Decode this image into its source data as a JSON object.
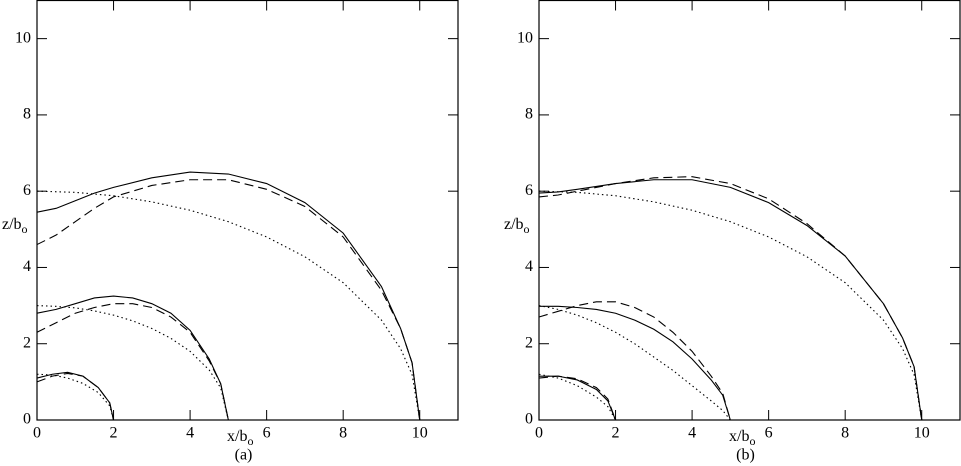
{
  "chart_data": [
    {
      "type": "line",
      "xlabel": "x/b",
      "xlabel_sub": "o",
      "ylabel": "z/b",
      "ylabel_sub": "o",
      "caption": "(a)",
      "xlim": [
        0,
        11
      ],
      "ylim": [
        0,
        11
      ],
      "xticks": [
        0,
        2,
        4,
        6,
        8,
        10
      ],
      "yticks": [
        0,
        2,
        4,
        6,
        8,
        10
      ],
      "series": [
        {
          "style": "solid",
          "color": "#000000",
          "x": [
            0,
            0.5,
            1,
            1.5,
            2,
            3,
            4,
            5,
            6,
            7,
            8,
            9,
            9.5,
            9.8,
            10
          ],
          "values": [
            5.45,
            5.55,
            5.75,
            5.95,
            6.1,
            6.35,
            6.5,
            6.45,
            6.2,
            5.7,
            4.9,
            3.5,
            2.4,
            1.5,
            0
          ]
        },
        {
          "style": "dashed",
          "color": "#000000",
          "x": [
            0,
            0.5,
            1,
            1.5,
            2,
            3,
            4,
            5,
            6,
            7,
            8,
            9,
            9.5,
            9.8,
            10
          ],
          "values": [
            4.6,
            4.85,
            5.2,
            5.55,
            5.85,
            6.15,
            6.3,
            6.3,
            6.05,
            5.6,
            4.8,
            3.4,
            2.4,
            1.5,
            0
          ]
        },
        {
          "style": "dotted",
          "color": "#000000",
          "x": [
            0,
            1,
            2,
            3,
            4,
            5,
            6,
            7,
            8,
            9,
            9.5,
            9.8,
            10
          ],
          "values": [
            6,
            5.97,
            5.88,
            5.72,
            5.5,
            5.2,
            4.8,
            4.28,
            3.6,
            2.62,
            1.87,
            1.19,
            0
          ]
        },
        {
          "style": "solid",
          "color": "#000000",
          "x": [
            0,
            0.5,
            1,
            1.5,
            2,
            2.5,
            3,
            3.5,
            4,
            4.5,
            4.8,
            5
          ],
          "values": [
            2.8,
            2.9,
            3.05,
            3.2,
            3.25,
            3.2,
            3.05,
            2.8,
            2.35,
            1.6,
            0.95,
            0
          ]
        },
        {
          "style": "dashed",
          "color": "#000000",
          "x": [
            0,
            0.5,
            1,
            1.5,
            2,
            2.5,
            3,
            3.5,
            4,
            4.5,
            4.8,
            5
          ],
          "values": [
            2.3,
            2.55,
            2.8,
            2.95,
            3.05,
            3.05,
            2.95,
            2.7,
            2.3,
            1.55,
            0.95,
            0
          ]
        },
        {
          "style": "dotted",
          "color": "#000000",
          "x": [
            0,
            0.5,
            1,
            1.5,
            2,
            2.5,
            3,
            3.5,
            4,
            4.5,
            4.8,
            5
          ],
          "values": [
            3,
            2.98,
            2.94,
            2.86,
            2.75,
            2.6,
            2.4,
            2.14,
            1.8,
            1.31,
            0.84,
            0
          ]
        },
        {
          "style": "solid",
          "color": "#000000",
          "x": [
            0,
            0.4,
            0.8,
            1.2,
            1.6,
            1.9,
            2
          ],
          "values": [
            1.1,
            1.2,
            1.25,
            1.15,
            0.85,
            0.45,
            0
          ]
        },
        {
          "style": "dashed",
          "color": "#000000",
          "x": [
            0,
            0.4,
            0.8,
            1.2,
            1.6,
            1.9,
            2
          ],
          "values": [
            1,
            1.15,
            1.22,
            1.15,
            0.85,
            0.45,
            0
          ]
        },
        {
          "style": "dotted",
          "color": "#000000",
          "x": [
            0,
            0.4,
            0.8,
            1.2,
            1.6,
            1.9,
            2
          ],
          "values": [
            1.2,
            1.18,
            1.1,
            0.96,
            0.72,
            0.37,
            0
          ]
        }
      ]
    },
    {
      "type": "line",
      "xlabel": "x/b",
      "xlabel_sub": "o",
      "ylabel": "z/b",
      "ylabel_sub": "o",
      "caption": "(b)",
      "xlim": [
        0,
        11
      ],
      "ylim": [
        0,
        11
      ],
      "xticks": [
        0,
        2,
        4,
        6,
        8,
        10
      ],
      "yticks": [
        0,
        2,
        4,
        6,
        8,
        10
      ],
      "series": [
        {
          "style": "solid",
          "color": "#000000",
          "x": [
            0,
            0.5,
            1,
            2,
            3,
            4,
            5,
            6,
            7,
            8,
            9,
            9.5,
            9.8,
            10
          ],
          "values": [
            5.95,
            5.98,
            6.05,
            6.2,
            6.3,
            6.3,
            6.1,
            5.7,
            5.1,
            4.3,
            3.05,
            2.15,
            1.4,
            0
          ]
        },
        {
          "style": "dashed",
          "color": "#000000",
          "x": [
            0,
            0.5,
            1,
            2,
            3,
            4,
            5,
            6,
            7,
            8,
            9,
            9.5,
            9.8,
            10
          ],
          "values": [
            5.85,
            5.9,
            6,
            6.2,
            6.35,
            6.38,
            6.2,
            5.8,
            5.15,
            4.3,
            3.05,
            2.15,
            1.4,
            0
          ]
        },
        {
          "style": "dotted",
          "color": "#000000",
          "x": [
            0,
            1,
            2,
            3,
            4,
            5,
            6,
            7,
            8,
            9,
            9.5,
            9.8,
            10
          ],
          "values": [
            6,
            5.97,
            5.88,
            5.72,
            5.5,
            5.2,
            4.8,
            4.28,
            3.6,
            2.62,
            1.87,
            1.19,
            0
          ]
        },
        {
          "style": "solid",
          "color": "#000000",
          "x": [
            0,
            0.5,
            1,
            1.5,
            2,
            2.5,
            3,
            3.5,
            4,
            4.5,
            4.8,
            5
          ],
          "values": [
            2.98,
            2.98,
            2.95,
            2.9,
            2.8,
            2.62,
            2.38,
            2.05,
            1.6,
            1.05,
            0.65,
            0
          ]
        },
        {
          "style": "dashed",
          "color": "#000000",
          "x": [
            0,
            0.5,
            1,
            1.5,
            2,
            2.5,
            3,
            3.5,
            4,
            4.5,
            4.8,
            5
          ],
          "values": [
            2.7,
            2.85,
            3,
            3.1,
            3.1,
            2.95,
            2.7,
            2.3,
            1.8,
            1.15,
            0.7,
            0
          ]
        },
        {
          "style": "dotted",
          "color": "#000000",
          "x": [
            0,
            0.5,
            1,
            1.5,
            2,
            2.5,
            3,
            3.5,
            4,
            4.5,
            4.8,
            5
          ],
          "values": [
            3,
            2.9,
            2.75,
            2.55,
            2.3,
            2,
            1.65,
            1.3,
            0.9,
            0.5,
            0.25,
            0
          ]
        },
        {
          "style": "solid",
          "color": "#000000",
          "x": [
            0,
            0.5,
            1,
            1.5,
            1.8,
            2
          ],
          "values": [
            1.15,
            1.15,
            1.05,
            0.8,
            0.5,
            0
          ]
        },
        {
          "style": "dashed",
          "color": "#000000",
          "x": [
            0,
            0.5,
            1,
            1.5,
            1.8,
            2
          ],
          "values": [
            1.1,
            1.15,
            1.08,
            0.85,
            0.55,
            0
          ]
        },
        {
          "style": "dotted",
          "color": "#000000",
          "x": [
            0,
            0.5,
            1,
            1.5,
            1.8,
            2
          ],
          "values": [
            1.2,
            1.1,
            0.9,
            0.6,
            0.35,
            0
          ]
        }
      ]
    }
  ]
}
